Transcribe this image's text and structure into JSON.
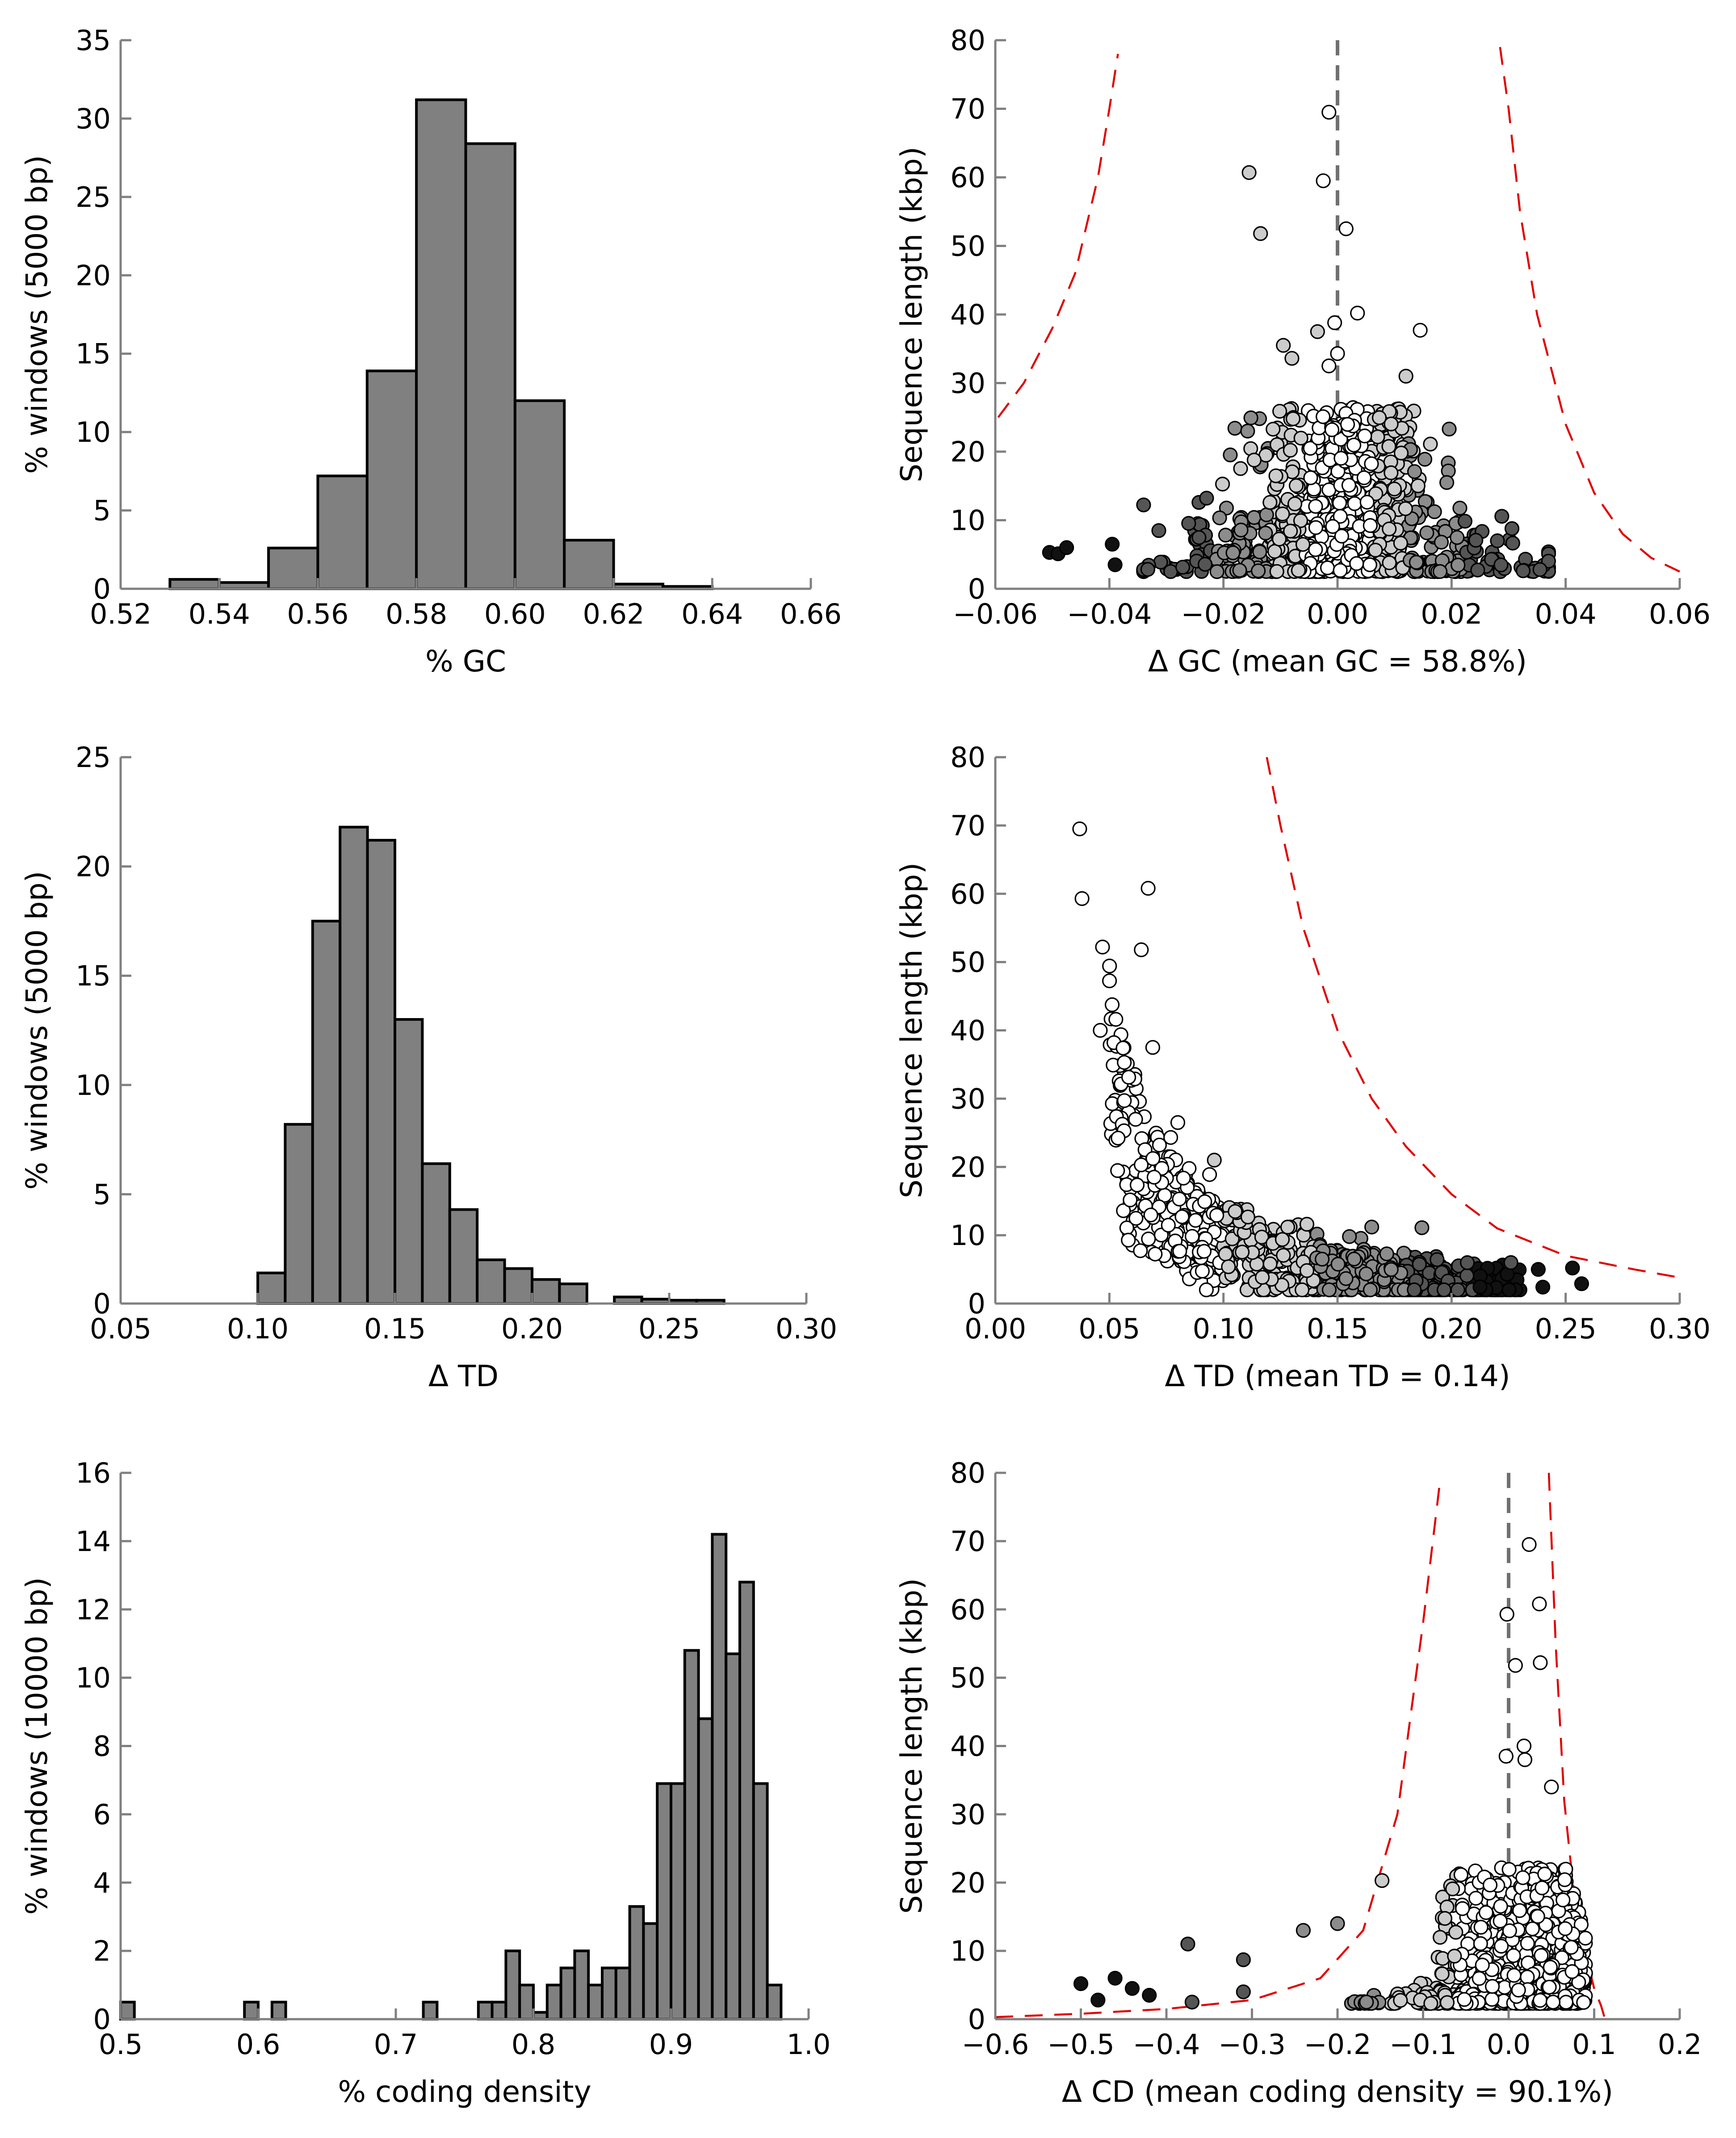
{
  "colors": {
    "bar_fill": "#808080",
    "threshold_curve": "#e00000",
    "zero_line": "#707070",
    "point_shades": [
      "#ffffff",
      "#cccccc",
      "#8c8c8c",
      "#555555",
      "#111111"
    ]
  },
  "chart_data": [
    {
      "id": "gc-hist",
      "type": "bar",
      "xlabel": "% GC",
      "ylabel": "% windows (5000 bp)",
      "xlim": [
        0.52,
        0.66
      ],
      "ylim": [
        0,
        35
      ],
      "xticks": [
        "0.52",
        "0.54",
        "0.56",
        "0.58",
        "0.60",
        "0.62",
        "0.64",
        "0.66"
      ],
      "yticks": [
        "0",
        "5",
        "10",
        "15",
        "20",
        "25",
        "30",
        "35"
      ],
      "bin_width": 0.01,
      "bin_starts": [
        0.53,
        0.54,
        0.55,
        0.56,
        0.57,
        0.58,
        0.59,
        0.6,
        0.61,
        0.62,
        0.63
      ],
      "values": [
        0.6,
        0.4,
        2.6,
        7.2,
        13.9,
        31.2,
        28.4,
        12.0,
        3.1,
        0.3,
        0.15
      ]
    },
    {
      "id": "gc-scatter",
      "type": "scatter",
      "xlabel": "Δ GC (mean GC = 58.8%)",
      "ylabel": "Sequence length (kbp)",
      "xlim": [
        -0.06,
        0.06
      ],
      "ylim": [
        0,
        80
      ],
      "xticks": [
        "−0.06",
        "−0.04",
        "−0.02",
        "0.00",
        "0.02",
        "0.04",
        "0.06"
      ],
      "yticks": [
        "0",
        "10",
        "20",
        "30",
        "40",
        "50",
        "60",
        "70",
        "80"
      ],
      "zero_line": true,
      "threshold_curves": [
        {
          "x": [
            -0.0595,
            -0.055,
            -0.05,
            -0.046,
            -0.042,
            -0.04,
            -0.0385
          ],
          "y": [
            25,
            30,
            38,
            46,
            60,
            70,
            78
          ]
        },
        {
          "x": [
            0.0285,
            0.03,
            0.032,
            0.035,
            0.04,
            0.045,
            0.05,
            0.055,
            0.06
          ],
          "y": [
            79,
            70,
            55,
            40,
            24,
            14,
            8,
            4.5,
            2.5
          ]
        }
      ],
      "point_count": 820,
      "highlighted_points": [
        {
          "x": -0.0015,
          "y": 69.5,
          "shade": 0
        },
        {
          "x": -0.0155,
          "y": 60.7,
          "shade": 1
        },
        {
          "x": -0.0025,
          "y": 59.5,
          "shade": 0
        },
        {
          "x": 0.0015,
          "y": 52.5,
          "shade": 0
        },
        {
          "x": -0.0135,
          "y": 51.8,
          "shade": 1
        },
        {
          "x": 0.0035,
          "y": 40.2,
          "shade": 0
        },
        {
          "x": -0.0005,
          "y": 38.8,
          "shade": 0
        },
        {
          "x": 0.0145,
          "y": 37.7,
          "shade": 0
        },
        {
          "x": -0.0035,
          "y": 37.5,
          "shade": 1
        },
        {
          "x": -0.0095,
          "y": 35.5,
          "shade": 1
        },
        {
          "x": 0.0,
          "y": 34.3,
          "shade": 0
        },
        {
          "x": -0.008,
          "y": 33.6,
          "shade": 1
        },
        {
          "x": -0.0015,
          "y": 32.5,
          "shade": 0
        },
        {
          "x": 0.012,
          "y": 31.0,
          "shade": 1
        },
        {
          "x": -0.0505,
          "y": 5.3,
          "shade": 4
        },
        {
          "x": -0.049,
          "y": 5.1,
          "shade": 4
        },
        {
          "x": -0.0475,
          "y": 6.0,
          "shade": 4
        },
        {
          "x": -0.0395,
          "y": 6.5,
          "shade": 4
        },
        {
          "x": -0.039,
          "y": 3.5,
          "shade": 4
        },
        {
          "x": 0.0355,
          "y": 2.8,
          "shade": 3
        }
      ]
    },
    {
      "id": "td-hist",
      "type": "bar",
      "xlabel": "Δ TD",
      "ylabel": "% windows (5000 bp)",
      "xlim": [
        0.05,
        0.3
      ],
      "ylim": [
        0,
        25
      ],
      "xticks": [
        "0.05",
        "0.10",
        "0.15",
        "0.20",
        "0.25",
        "0.30"
      ],
      "yticks": [
        "0",
        "5",
        "10",
        "15",
        "20",
        "25"
      ],
      "bin_width": 0.01,
      "bin_starts": [
        0.1,
        0.11,
        0.12,
        0.13,
        0.14,
        0.15,
        0.16,
        0.17,
        0.18,
        0.19,
        0.2,
        0.21,
        0.23,
        0.24,
        0.25,
        0.26
      ],
      "values": [
        1.4,
        8.2,
        17.5,
        21.8,
        21.2,
        13.0,
        6.4,
        4.3,
        2.0,
        1.6,
        1.1,
        0.9,
        0.3,
        0.2,
        0.15,
        0.15
      ]
    },
    {
      "id": "td-scatter",
      "type": "scatter",
      "xlabel": "Δ TD (mean TD = 0.14)",
      "ylabel": "Sequence length (kbp)",
      "xlim": [
        0.0,
        0.3
      ],
      "ylim": [
        0,
        80
      ],
      "xticks": [
        "0.00",
        "0.05",
        "0.10",
        "0.15",
        "0.20",
        "0.25",
        "0.30"
      ],
      "yticks": [
        "0",
        "10",
        "20",
        "30",
        "40",
        "50",
        "60",
        "70",
        "80"
      ],
      "zero_line": false,
      "threshold_curves": [
        {
          "x": [
            0.119,
            0.125,
            0.135,
            0.15,
            0.165,
            0.18,
            0.2,
            0.22,
            0.25,
            0.28,
            0.3
          ],
          "y": [
            80,
            70,
            55,
            40,
            30,
            23,
            16,
            11,
            7,
            5,
            3.8
          ]
        }
      ],
      "point_count": 820,
      "highlighted_points": [
        {
          "x": 0.037,
          "y": 69.5,
          "shade": 0
        },
        {
          "x": 0.038,
          "y": 59.3,
          "shade": 0
        },
        {
          "x": 0.067,
          "y": 60.8,
          "shade": 0
        },
        {
          "x": 0.047,
          "y": 52.2,
          "shade": 0
        },
        {
          "x": 0.064,
          "y": 51.8,
          "shade": 0
        },
        {
          "x": 0.046,
          "y": 40.0,
          "shade": 0
        },
        {
          "x": 0.052,
          "y": 38.2,
          "shade": 0
        },
        {
          "x": 0.056,
          "y": 37.4,
          "shade": 0
        },
        {
          "x": 0.069,
          "y": 37.5,
          "shade": 0
        },
        {
          "x": 0.08,
          "y": 26.5,
          "shade": 0
        },
        {
          "x": 0.096,
          "y": 21.0,
          "shade": 1
        },
        {
          "x": 0.187,
          "y": 11.1,
          "shade": 2
        },
        {
          "x": 0.165,
          "y": 11.2,
          "shade": 2
        },
        {
          "x": 0.226,
          "y": 6.0,
          "shade": 3
        },
        {
          "x": 0.253,
          "y": 5.2,
          "shade": 4
        },
        {
          "x": 0.257,
          "y": 2.9,
          "shade": 4
        },
        {
          "x": 0.238,
          "y": 5.0,
          "shade": 4
        },
        {
          "x": 0.24,
          "y": 2.4,
          "shade": 4
        }
      ]
    },
    {
      "id": "cd-hist",
      "type": "bar",
      "xlabel": "% coding density",
      "ylabel": "% windows (10000 bp)",
      "xlim": [
        0.5,
        1.0
      ],
      "ylim": [
        0,
        16
      ],
      "xticks": [
        "0.5",
        "0.6",
        "0.7",
        "0.8",
        "0.9",
        "1.0"
      ],
      "yticks": [
        "0",
        "2",
        "4",
        "6",
        "8",
        "10",
        "12",
        "14",
        "16"
      ],
      "bin_width": 0.01,
      "bin_starts": [
        0.5,
        0.59,
        0.61,
        0.72,
        0.76,
        0.77,
        0.78,
        0.79,
        0.8,
        0.81,
        0.82,
        0.83,
        0.84,
        0.85,
        0.86,
        0.87,
        0.88,
        0.89,
        0.9,
        0.91,
        0.92,
        0.93,
        0.94,
        0.95,
        0.96,
        0.97
      ],
      "values": [
        0.5,
        0.5,
        0.5,
        0.5,
        0.5,
        0.5,
        2.0,
        1.0,
        0.2,
        1.0,
        1.5,
        2.0,
        1.0,
        1.5,
        1.5,
        3.3,
        2.8,
        6.9,
        6.9,
        10.8,
        8.8,
        14.2,
        10.7,
        12.8,
        6.9,
        1.0
      ]
    },
    {
      "id": "cd-scatter",
      "type": "scatter",
      "xlabel": "Δ CD (mean coding density = 90.1%)",
      "ylabel": "Sequence length (kbp)",
      "xlim": [
        -0.6,
        0.2
      ],
      "ylim": [
        0,
        80
      ],
      "xticks": [
        "−0.6",
        "−0.5",
        "−0.4",
        "−0.3",
        "−0.2",
        "−0.1",
        "0.0",
        "0.1",
        "0.2"
      ],
      "yticks": [
        "0",
        "10",
        "20",
        "30",
        "40",
        "50",
        "60",
        "70",
        "80"
      ],
      "zero_line": true,
      "threshold_curves": [
        {
          "x": [
            -0.6,
            -0.5,
            -0.4,
            -0.3,
            -0.22,
            -0.17,
            -0.13,
            -0.1,
            -0.08
          ],
          "y": [
            0.3,
            0.8,
            1.5,
            2.8,
            6,
            13,
            30,
            58,
            79
          ]
        },
        {
          "x": [
            0.047,
            0.055,
            0.065,
            0.075,
            0.085,
            0.095,
            0.1,
            0.108,
            0.112
          ],
          "y": [
            80,
            55,
            32,
            20,
            12,
            7,
            4.5,
            2.0,
            0.3
          ]
        }
      ],
      "point_count": 820,
      "highlighted_points": [
        {
          "x": 0.024,
          "y": 69.5,
          "shade": 0
        },
        {
          "x": 0.036,
          "y": 60.8,
          "shade": 0
        },
        {
          "x": -0.002,
          "y": 59.3,
          "shade": 0
        },
        {
          "x": 0.037,
          "y": 52.2,
          "shade": 0
        },
        {
          "x": 0.008,
          "y": 51.8,
          "shade": 0
        },
        {
          "x": 0.018,
          "y": 40.0,
          "shade": 0
        },
        {
          "x": 0.019,
          "y": 38.0,
          "shade": 0
        },
        {
          "x": -0.003,
          "y": 38.5,
          "shade": 0
        },
        {
          "x": 0.05,
          "y": 34.0,
          "shade": 0
        },
        {
          "x": -0.148,
          "y": 20.3,
          "shade": 1
        },
        {
          "x": -0.5,
          "y": 5.2,
          "shade": 4
        },
        {
          "x": -0.46,
          "y": 6.0,
          "shade": 4
        },
        {
          "x": -0.44,
          "y": 4.5,
          "shade": 4
        },
        {
          "x": -0.42,
          "y": 3.5,
          "shade": 4
        },
        {
          "x": -0.48,
          "y": 2.8,
          "shade": 4
        },
        {
          "x": -0.375,
          "y": 11.0,
          "shade": 3
        },
        {
          "x": -0.37,
          "y": 2.5,
          "shade": 3
        },
        {
          "x": -0.31,
          "y": 8.7,
          "shade": 3
        },
        {
          "x": -0.31,
          "y": 4.0,
          "shade": 3
        },
        {
          "x": -0.24,
          "y": 13.0,
          "shade": 2
        },
        {
          "x": -0.2,
          "y": 14.0,
          "shade": 2
        }
      ]
    }
  ]
}
